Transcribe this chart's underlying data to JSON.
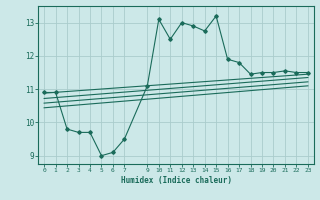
{
  "xlabel": "Humidex (Indice chaleur)",
  "bg_color": "#cce8e8",
  "line_color": "#1a6b5a",
  "grid_color": "#aacccc",
  "xlim": [
    -0.5,
    23.5
  ],
  "ylim": [
    8.75,
    13.5
  ],
  "xticks": [
    0,
    1,
    2,
    3,
    4,
    5,
    6,
    7,
    9,
    10,
    11,
    12,
    13,
    14,
    15,
    16,
    17,
    18,
    19,
    20,
    21,
    22,
    23
  ],
  "yticks": [
    9,
    10,
    11,
    12,
    13
  ],
  "line1_x": [
    0,
    1,
    2,
    3,
    4,
    5,
    6,
    7,
    9,
    10,
    11,
    12,
    13,
    14,
    15,
    16,
    17,
    18,
    19,
    20,
    21,
    22,
    23
  ],
  "line1_y": [
    10.9,
    10.9,
    9.8,
    9.7,
    9.7,
    9.0,
    9.1,
    9.5,
    11.1,
    13.1,
    12.5,
    13.0,
    12.9,
    12.75,
    13.2,
    11.9,
    11.8,
    11.45,
    11.5,
    11.5,
    11.55,
    11.5,
    11.5
  ],
  "line2_x": [
    0,
    23
  ],
  "line2_y": [
    10.88,
    11.45
  ],
  "line3_x": [
    0,
    23
  ],
  "line3_y": [
    10.72,
    11.35
  ],
  "line4_x": [
    0,
    23
  ],
  "line4_y": [
    10.58,
    11.22
  ],
  "line5_x": [
    0,
    23
  ],
  "line5_y": [
    10.44,
    11.1
  ]
}
